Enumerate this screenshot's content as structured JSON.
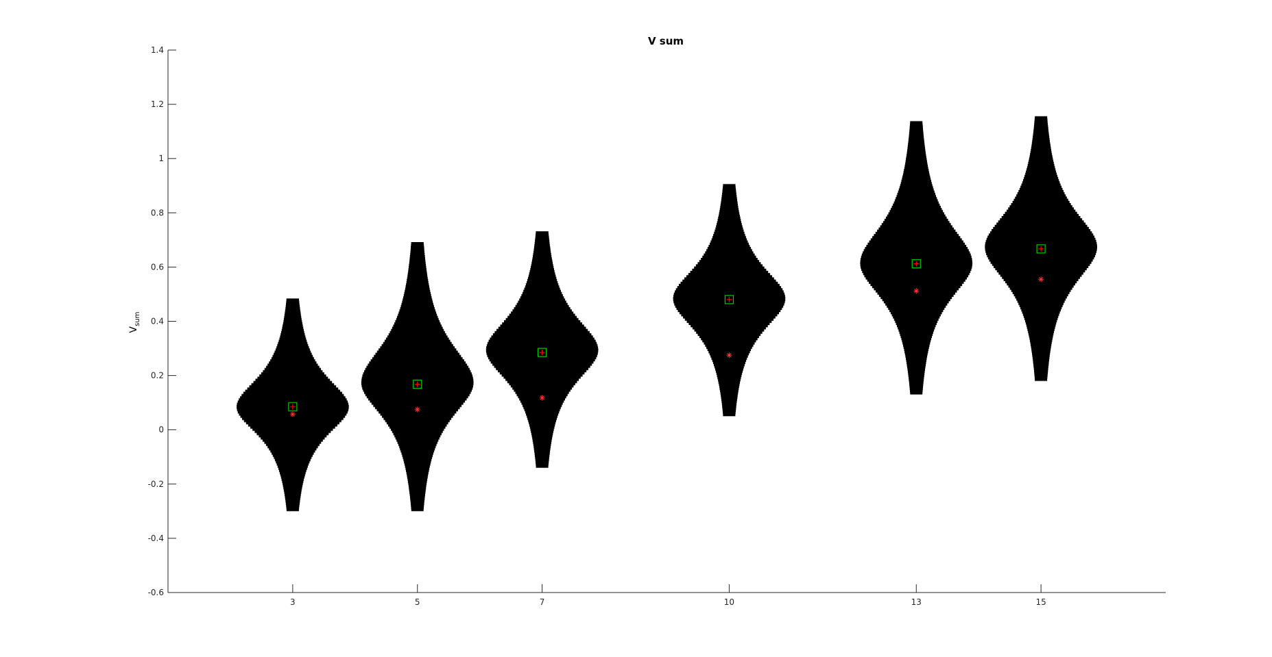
{
  "chart_data": {
    "type": "violin",
    "title": "V sum",
    "xlabel": "",
    "ylabel": {
      "base": "V",
      "subscript": "sum"
    },
    "categories": [
      "3",
      "5",
      "7",
      "10",
      "13",
      "15"
    ],
    "x": [
      3,
      5,
      7,
      10,
      13,
      15
    ],
    "xlim": [
      1,
      17
    ],
    "ylim": [
      -0.6,
      1.4
    ],
    "yticks": [
      "-0.6",
      "-0.4",
      "-0.2",
      "0",
      "0.2",
      "0.4",
      "0.6",
      "0.8",
      "1",
      "1.2",
      "1.4"
    ],
    "grid": false,
    "colors": {
      "violin": "#000000",
      "mean_marker": "#00cc00",
      "median_marker": "#ff0000",
      "star_marker": "#ff3333",
      "axis": "#262626"
    },
    "violins": [
      {
        "x": 3,
        "min": -0.3,
        "max": 0.48,
        "peak": 0.08,
        "halfwidth": 0.9,
        "mean": 0.085,
        "median": 0.085,
        "star": 0.057
      },
      {
        "x": 5,
        "min": -0.3,
        "max": 0.69,
        "peak": 0.17,
        "halfwidth": 0.9,
        "mean": 0.168,
        "median": 0.168,
        "star": 0.075
      },
      {
        "x": 7,
        "min": -0.14,
        "max": 0.73,
        "peak": 0.29,
        "halfwidth": 0.9,
        "mean": 0.285,
        "median": 0.285,
        "star": 0.118
      },
      {
        "x": 10,
        "min": 0.05,
        "max": 0.9,
        "peak": 0.48,
        "halfwidth": 0.9,
        "mean": 0.48,
        "median": 0.48,
        "star": 0.275
      },
      {
        "x": 13,
        "min": 0.13,
        "max": 1.13,
        "peak": 0.61,
        "halfwidth": 0.9,
        "mean": 0.612,
        "median": 0.612,
        "star": 0.512
      },
      {
        "x": 15,
        "min": 0.18,
        "max": 1.15,
        "peak": 0.67,
        "halfwidth": 0.9,
        "mean": 0.667,
        "median": 0.667,
        "star": 0.555
      }
    ]
  }
}
